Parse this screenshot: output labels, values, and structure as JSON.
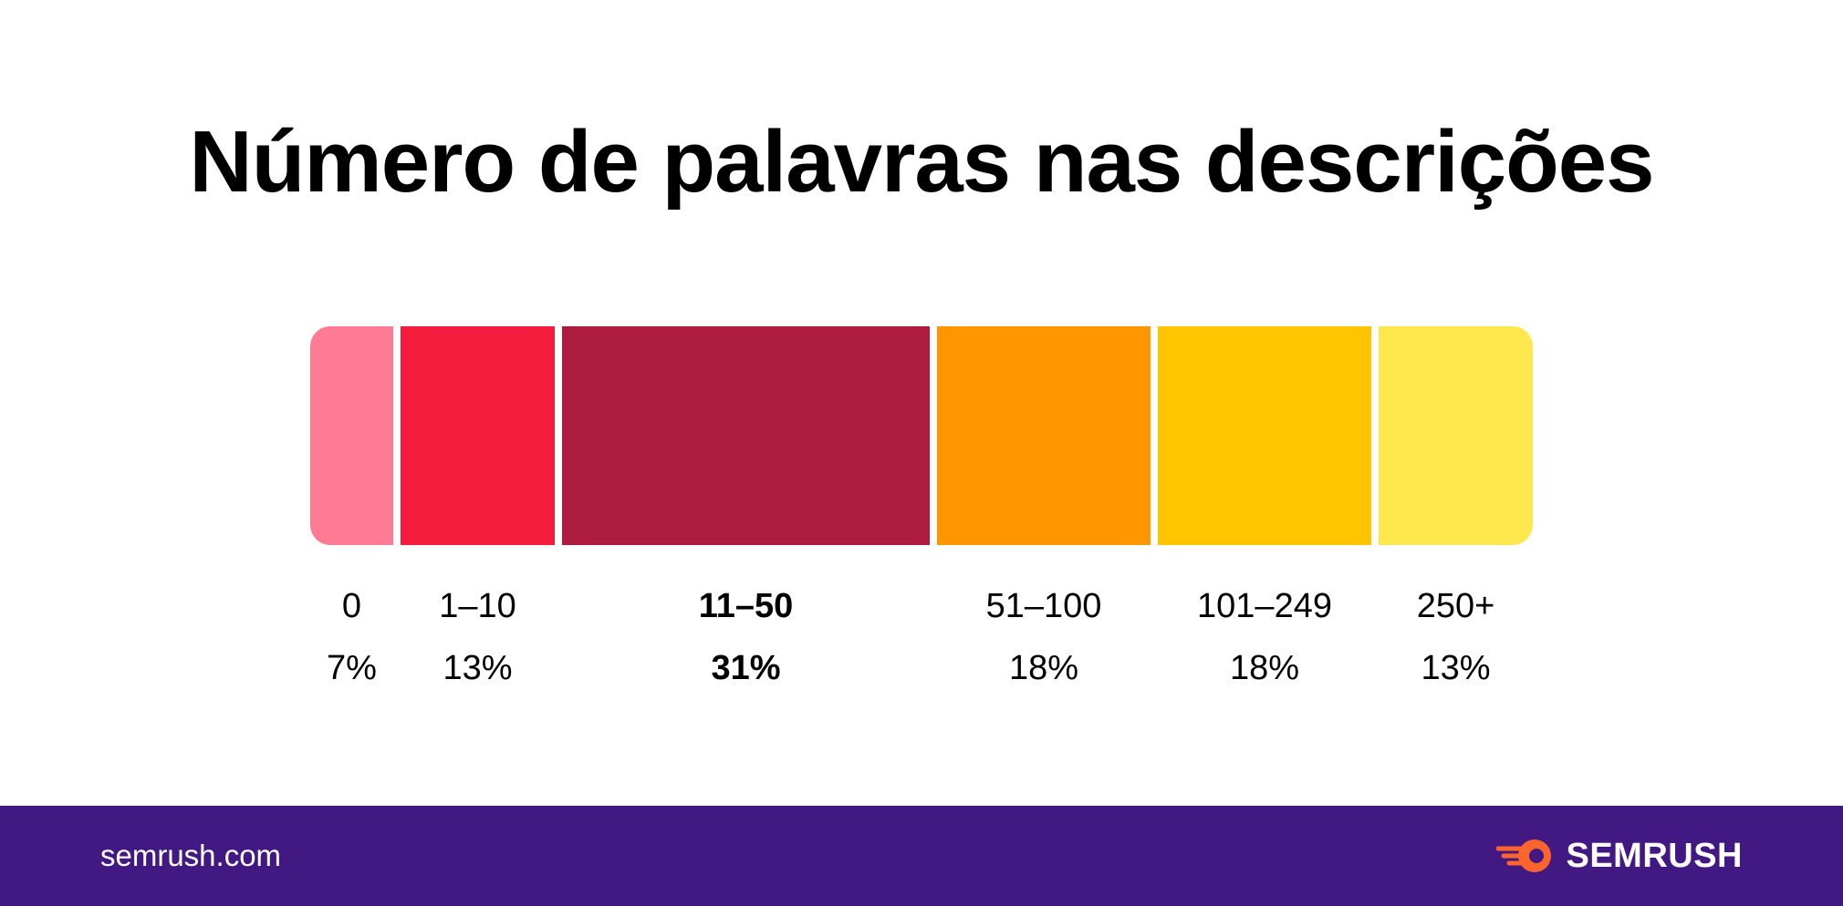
{
  "title": "Número de palavras nas descrições",
  "chart_data": {
    "type": "bar",
    "subtype": "stacked-100-horizontal",
    "title": "Número de palavras nas descrições",
    "categories": [
      "0",
      "1–10",
      "11–50",
      "51–100",
      "101–249",
      "250+"
    ],
    "values": [
      7,
      13,
      31,
      18,
      18,
      13
    ],
    "value_labels": [
      "7%",
      "13%",
      "31%",
      "18%",
      "18%",
      "13%"
    ],
    "colors": [
      "#FF7A93",
      "#F41C3C",
      "#AD1C3E",
      "#FF9600",
      "#FFC500",
      "#FFE84E"
    ],
    "highlight": "11–50",
    "unit": "%",
    "xlabel": "",
    "ylabel": ""
  },
  "footer": {
    "domain": "semrush.com",
    "brand": "SEMRUSH",
    "brand_icon": "semrush-fireball-icon",
    "background": "#421983",
    "accent": "#FF642D"
  }
}
